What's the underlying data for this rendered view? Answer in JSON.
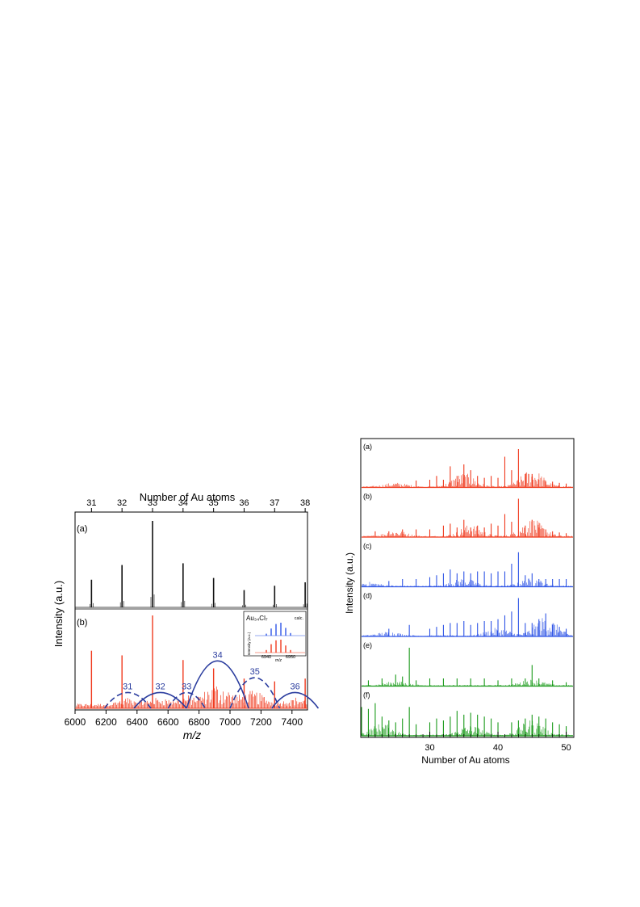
{
  "colors": {
    "black_trace": "#111111",
    "red_trace": "#f03a1e",
    "blue_trace": "#2f55e6",
    "green_trace": "#1a9a1a",
    "envelope": "#2a3c9e",
    "axis": "#000000"
  },
  "chart_data": [
    {
      "type": "bar",
      "panel_label": "(a)",
      "title": "",
      "xlabel": "m/z",
      "ylabel": "Intensity (a.u.)",
      "top_axis_label": "Number of Au atoms",
      "xlim": [
        6000,
        7500
      ],
      "x_ticks": [
        6000,
        6200,
        6400,
        6600,
        6800,
        7000,
        7200,
        7400
      ],
      "top_ticks": [
        31,
        32,
        33,
        34,
        35,
        36,
        37,
        38
      ],
      "peaks": [
        {
          "x": 6106,
          "y": 0.32
        },
        {
          "x": 6303,
          "y": 0.49
        },
        {
          "x": 6500,
          "y": 1.0
        },
        {
          "x": 6697,
          "y": 0.51
        },
        {
          "x": 6894,
          "y": 0.34
        },
        {
          "x": 7091,
          "y": 0.2
        },
        {
          "x": 7288,
          "y": 0.25
        },
        {
          "x": 7485,
          "y": 0.29
        }
      ]
    },
    {
      "type": "bar",
      "panel_label": "(b)",
      "title": "",
      "xlim": [
        6000,
        7500
      ],
      "major_peaks": [
        {
          "x": 6106,
          "y": 0.62
        },
        {
          "x": 6303,
          "y": 0.57
        },
        {
          "x": 6500,
          "y": 1.0
        },
        {
          "x": 6697,
          "y": 0.52
        },
        {
          "x": 6894,
          "y": 0.43
        },
        {
          "x": 7091,
          "y": 0.32
        },
        {
          "x": 7288,
          "y": 0.29
        },
        {
          "x": 7485,
          "y": 0.32
        }
      ],
      "envelopes": [
        {
          "label": "31",
          "center": 6340,
          "height": 0.17,
          "width": 150,
          "style": "dashed"
        },
        {
          "label": "32",
          "center": 6550,
          "height": 0.17,
          "width": 170,
          "style": "solid"
        },
        {
          "label": "33",
          "center": 6720,
          "height": 0.17,
          "width": 120,
          "style": "dashed"
        },
        {
          "label": "34",
          "center": 6920,
          "height": 0.51,
          "width": 200,
          "style": "solid"
        },
        {
          "label": "35",
          "center": 7160,
          "height": 0.33,
          "width": 160,
          "style": "dashed"
        },
        {
          "label": "36",
          "center": 7420,
          "height": 0.17,
          "width": 150,
          "style": "solid"
        }
      ],
      "inset": {
        "title": "Au₃₄Cl₇",
        "note": "calc.",
        "ylabel": "Intensity (a.u.)",
        "xlabel": "m/z",
        "x_ticks": [
          6940,
          6950
        ],
        "calc_peaks": [
          0.15,
          0.55,
          0.9,
          1.0,
          0.6,
          0.2
        ],
        "exp_peaks": [
          0.2,
          0.65,
          0.95,
          1.0,
          0.55,
          0.2
        ]
      }
    },
    {
      "type": "bar",
      "xlabel": "Number of Au atoms",
      "ylabel": "Intensity (a.u.)",
      "xlim": [
        20,
        51
      ],
      "x_ticks": [
        30,
        40,
        50
      ],
      "panels": [
        {
          "label": "(a)",
          "color": "red",
          "peaks": [
            [
              28,
              0.18
            ],
            [
              30,
              0.2
            ],
            [
              31,
              0.3
            ],
            [
              32,
              0.2
            ],
            [
              33,
              0.55
            ],
            [
              34,
              0.3
            ],
            [
              35,
              0.6
            ],
            [
              36,
              0.45
            ],
            [
              37,
              0.3
            ],
            [
              38,
              0.25
            ],
            [
              39,
              0.3
            ],
            [
              40,
              0.25
            ],
            [
              41,
              0.8
            ],
            [
              42,
              0.45
            ],
            [
              43,
              1.0
            ],
            [
              44,
              0.35
            ],
            [
              45,
              0.35
            ],
            [
              46,
              0.2
            ],
            [
              47,
              0.15
            ],
            [
              48,
              0.15
            ],
            [
              49,
              0.12
            ],
            [
              50,
              0.1
            ]
          ],
          "clusters": [
            [
              25,
              0.1
            ],
            [
              35,
              0.35
            ],
            [
              45,
              0.45
            ]
          ]
        },
        {
          "label": "(b)",
          "color": "red",
          "peaks": [
            [
              22,
              0.15
            ],
            [
              24,
              0.15
            ],
            [
              26,
              0.2
            ],
            [
              28,
              0.2
            ],
            [
              30,
              0.2
            ],
            [
              32,
              0.3
            ],
            [
              33,
              0.35
            ],
            [
              34,
              0.25
            ],
            [
              35,
              0.45
            ],
            [
              36,
              0.25
            ],
            [
              37,
              0.3
            ],
            [
              38,
              0.25
            ],
            [
              39,
              0.35
            ],
            [
              40,
              0.3
            ],
            [
              41,
              0.6
            ],
            [
              42,
              0.4
            ],
            [
              43,
              1.0
            ],
            [
              44,
              0.3
            ],
            [
              45,
              0.45
            ],
            [
              46,
              0.25
            ],
            [
              47,
              0.2
            ],
            [
              48,
              0.15
            ],
            [
              49,
              0.12
            ],
            [
              50,
              0.1
            ]
          ],
          "clusters": [
            [
              25,
              0.15
            ],
            [
              36,
              0.3
            ],
            [
              45,
              0.45
            ]
          ]
        },
        {
          "label": "(c)",
          "color": "blue",
          "peaks": [
            [
              24,
              0.15
            ],
            [
              26,
              0.2
            ],
            [
              28,
              0.2
            ],
            [
              30,
              0.25
            ],
            [
              31,
              0.3
            ],
            [
              32,
              0.35
            ],
            [
              33,
              0.45
            ],
            [
              34,
              0.35
            ],
            [
              35,
              0.4
            ],
            [
              36,
              0.35
            ],
            [
              37,
              0.4
            ],
            [
              38,
              0.4
            ],
            [
              39,
              0.35
            ],
            [
              40,
              0.4
            ],
            [
              41,
              0.4
            ],
            [
              42,
              0.6
            ],
            [
              43,
              0.9
            ],
            [
              44,
              0.3
            ],
            [
              45,
              0.35
            ],
            [
              46,
              0.2
            ],
            [
              47,
              0.2
            ],
            [
              48,
              0.2
            ],
            [
              49,
              0.2
            ],
            [
              50,
              0.2
            ]
          ],
          "clusters": [
            [
              21,
              0.1
            ],
            [
              35,
              0.2
            ],
            [
              45,
              0.2
            ]
          ]
        },
        {
          "label": "(d)",
          "color": "blue",
          "peaks": [
            [
              24,
              0.2
            ],
            [
              27,
              0.3
            ],
            [
              30,
              0.2
            ],
            [
              31,
              0.25
            ],
            [
              32,
              0.3
            ],
            [
              33,
              0.35
            ],
            [
              34,
              0.35
            ],
            [
              35,
              0.4
            ],
            [
              36,
              0.3
            ],
            [
              37,
              0.35
            ],
            [
              38,
              0.4
            ],
            [
              39,
              0.4
            ],
            [
              40,
              0.45
            ],
            [
              41,
              0.55
            ],
            [
              42,
              0.65
            ],
            [
              43,
              1.0
            ],
            [
              44,
              0.35
            ],
            [
              45,
              0.35
            ],
            [
              46,
              0.45
            ],
            [
              47,
              0.6
            ],
            [
              48,
              0.3
            ],
            [
              49,
              0.25
            ],
            [
              50,
              0.2
            ]
          ],
          "clusters": [
            [
              24,
              0.1
            ],
            [
              40,
              0.2
            ],
            [
              47,
              0.5
            ]
          ]
        },
        {
          "label": "(e)",
          "color": "green",
          "peaks": [
            [
              21,
              0.15
            ],
            [
              23,
              0.2
            ],
            [
              25,
              0.3
            ],
            [
              26,
              0.25
            ],
            [
              27,
              1.0
            ],
            [
              28,
              0.15
            ],
            [
              30,
              0.2
            ],
            [
              32,
              0.2
            ],
            [
              34,
              0.2
            ],
            [
              36,
              0.2
            ],
            [
              38,
              0.2
            ],
            [
              40,
              0.15
            ],
            [
              42,
              0.2
            ],
            [
              44,
              0.2
            ],
            [
              45,
              0.55
            ],
            [
              46,
              0.2
            ],
            [
              48,
              0.15
            ],
            [
              50,
              0.1
            ]
          ],
          "clusters": [
            [
              25,
              0.1
            ],
            [
              45,
              0.15
            ]
          ]
        },
        {
          "label": "(f)",
          "color": "green",
          "peaks": [
            [
              20,
              0.75
            ],
            [
              21,
              0.7
            ],
            [
              22,
              0.85
            ],
            [
              23,
              0.5
            ],
            [
              24,
              0.4
            ],
            [
              25,
              0.35
            ],
            [
              26,
              0.45
            ],
            [
              27,
              0.75
            ],
            [
              28,
              0.3
            ],
            [
              30,
              0.35
            ],
            [
              31,
              0.45
            ],
            [
              32,
              0.4
            ],
            [
              33,
              0.5
            ],
            [
              34,
              0.65
            ],
            [
              35,
              0.55
            ],
            [
              36,
              0.6
            ],
            [
              37,
              0.55
            ],
            [
              38,
              0.5
            ],
            [
              39,
              0.45
            ],
            [
              40,
              0.35
            ],
            [
              42,
              0.35
            ],
            [
              43,
              0.4
            ],
            [
              44,
              0.45
            ],
            [
              45,
              0.55
            ],
            [
              46,
              0.5
            ],
            [
              47,
              0.45
            ],
            [
              48,
              0.35
            ],
            [
              49,
              0.3
            ],
            [
              50,
              0.25
            ]
          ],
          "clusters": [
            [
              23,
              0.3
            ],
            [
              36,
              0.25
            ],
            [
              45,
              0.4
            ]
          ]
        }
      ]
    }
  ]
}
